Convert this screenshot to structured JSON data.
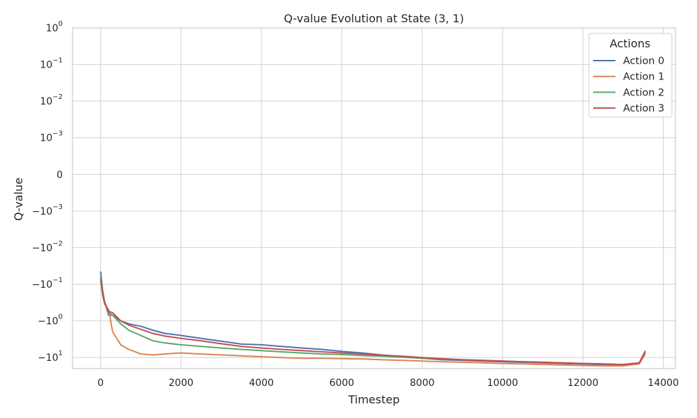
{
  "chart_data": {
    "type": "line",
    "title": "Q-value Evolution at State (3, 1)",
    "xlabel": "Timestep",
    "ylabel": "Q-value",
    "xlim": [
      -700,
      14300
    ],
    "x_ticks": [
      0,
      2000,
      4000,
      6000,
      8000,
      10000,
      12000,
      14000
    ],
    "x_tick_labels": [
      "0",
      "2000",
      "4000",
      "6000",
      "8000",
      "10000",
      "12000",
      "14000"
    ],
    "y_scale": "symlog",
    "y_linthresh": 0.001,
    "ylim": [
      -20,
      1
    ],
    "y_ticks": [
      1,
      0.1,
      0.01,
      0.001,
      0,
      -0.001,
      -0.01,
      -0.1,
      -1,
      -10
    ],
    "y_tick_labels": [
      {
        "base": "10",
        "exp": "0"
      },
      {
        "base": "10",
        "exp": "−1"
      },
      {
        "base": "10",
        "exp": "−2"
      },
      {
        "base": "10",
        "exp": "−3"
      },
      {
        "base": "0",
        "exp": ""
      },
      {
        "base": "−10",
        "exp": "−3"
      },
      {
        "base": "−10",
        "exp": "−2"
      },
      {
        "base": "−10",
        "exp": "−1"
      },
      {
        "base": "−10",
        "exp": "0"
      },
      {
        "base": "−10",
        "exp": "1"
      }
    ],
    "grid": true,
    "legend": {
      "title": "Actions",
      "position": "top-right"
    },
    "x": [
      0,
      50,
      100,
      200,
      300,
      500,
      700,
      1000,
      1300,
      1600,
      2000,
      2500,
      3000,
      3500,
      4000,
      4500,
      5000,
      5500,
      6000,
      6500,
      7000,
      7500,
      8000,
      8500,
      9000,
      9500,
      10000,
      10500,
      11000,
      11500,
      12000,
      12500,
      13000,
      13400,
      13550
    ],
    "series": [
      {
        "name": "Action 0",
        "color": "#4c72b0",
        "values": [
          -0.045,
          -0.15,
          -0.3,
          -0.7,
          -0.7,
          -1.0,
          -1.2,
          -1.4,
          -1.8,
          -2.2,
          -2.5,
          -3.0,
          -3.6,
          -4.3,
          -4.5,
          -5.0,
          -5.5,
          -6.0,
          -6.8,
          -7.5,
          -8.5,
          -9.5,
          -10.5,
          -11.5,
          -12.0,
          -12.5,
          -13.0,
          -13.5,
          -14.0,
          -14.5,
          -15.0,
          -15.5,
          -16.0,
          -14.0,
          -7.0
        ]
      },
      {
        "name": "Action 1",
        "color": "#dd8452",
        "values": [
          -0.08,
          -0.2,
          -0.35,
          -0.5,
          -2.0,
          -4.5,
          -6.0,
          -8.0,
          -8.5,
          -8.0,
          -7.5,
          -8.0,
          -8.5,
          -9.0,
          -9.5,
          -10.0,
          -10.5,
          -10.5,
          -10.8,
          -11.0,
          -11.5,
          -12.0,
          -12.5,
          -13.0,
          -13.5,
          -14.0,
          -14.5,
          -15.0,
          -15.5,
          -16.0,
          -16.5,
          -17.0,
          -17.0,
          -15.0,
          -8.0
        ]
      },
      {
        "name": "Action 2",
        "color": "#55a868",
        "values": [
          -0.06,
          -0.18,
          -0.3,
          -0.6,
          -0.7,
          -1.2,
          -1.8,
          -2.5,
          -3.5,
          -4.0,
          -4.5,
          -5.0,
          -5.5,
          -6.0,
          -6.5,
          -7.0,
          -7.5,
          -8.0,
          -8.3,
          -8.8,
          -9.2,
          -9.8,
          -10.5,
          -11.0,
          -11.5,
          -12.0,
          -12.5,
          -13.0,
          -13.5,
          -14.0,
          -14.5,
          -15.0,
          -15.5,
          -14.0,
          -6.5
        ]
      },
      {
        "name": "Action 3",
        "color": "#c44e52",
        "values": [
          -0.07,
          -0.2,
          -0.32,
          -0.55,
          -0.6,
          -1.0,
          -1.3,
          -1.7,
          -2.2,
          -2.6,
          -3.0,
          -3.5,
          -4.2,
          -5.0,
          -5.5,
          -6.0,
          -6.5,
          -7.0,
          -7.5,
          -8.0,
          -8.6,
          -9.2,
          -10.0,
          -10.8,
          -11.5,
          -12.0,
          -12.5,
          -13.0,
          -13.5,
          -14.0,
          -14.5,
          -15.0,
          -15.5,
          -14.0,
          -7.0
        ]
      }
    ]
  }
}
